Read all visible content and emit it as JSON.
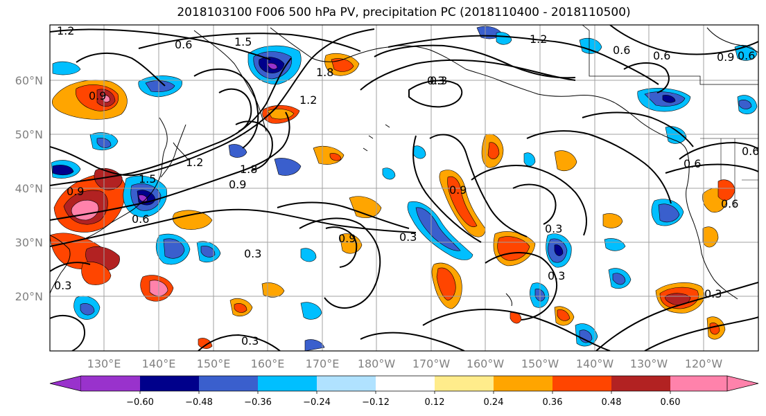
{
  "title": "2018103100 F006 500 hPa PV, precipitation PC (2018110400 - 2018110500)",
  "map": {
    "lat_labels": [
      "60°N",
      "50°N",
      "40°N",
      "30°N",
      "20°N"
    ],
    "lon_labels": [
      "130°E",
      "140°E",
      "150°E",
      "160°E",
      "170°E",
      "180°W",
      "170°W",
      "160°W",
      "150°W",
      "140°W",
      "130°W",
      "120°W"
    ],
    "contour_labels": [
      "1.2",
      "1.5",
      "0.6",
      "1.2",
      "0.6",
      "0.9",
      "0.6",
      "0.9",
      "0.3",
      "1.8",
      "1.2",
      "0.3",
      "0.9",
      "1.2",
      "1.5",
      "1.8",
      "0.9",
      "0.6",
      "0.9",
      "0.3",
      "0.3",
      "0.9",
      "0.3",
      "0.3",
      "0.6",
      "0.3",
      "0.3",
      "0.6",
      "0.6",
      "0.6",
      "0.3"
    ]
  },
  "colorbar": {
    "ticks": [
      "−0.60",
      "−0.48",
      "−0.36",
      "−0.24",
      "−0.12",
      "0.12",
      "0.24",
      "0.36",
      "0.48",
      "0.60"
    ],
    "colors": [
      "#9932cc",
      "#00008b",
      "#3a5fcd",
      "#00bfff",
      "#b0e2ff",
      "#ffffff",
      "#ffec8b",
      "#ffa500",
      "#ff4500",
      "#b22222",
      "#ff82ab"
    ]
  }
}
